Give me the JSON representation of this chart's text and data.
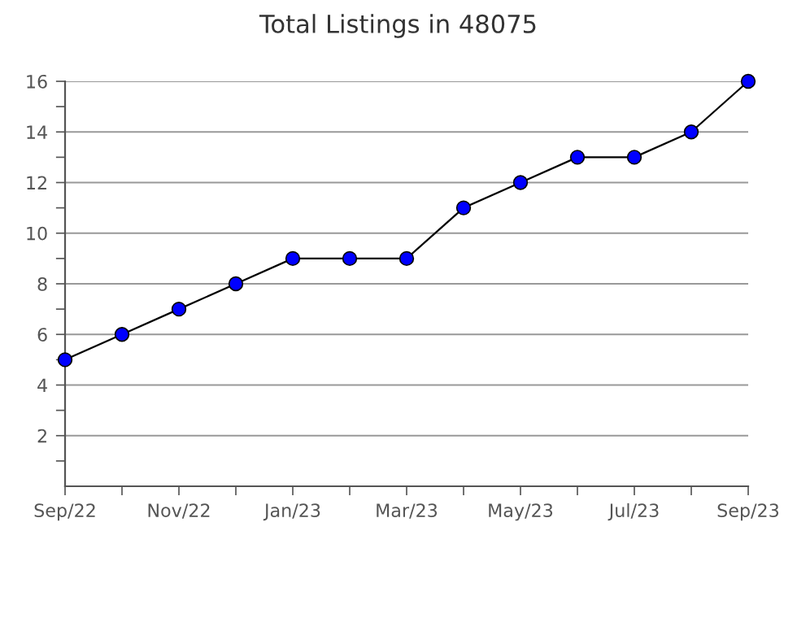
{
  "chart_data": {
    "type": "line",
    "title": "Total Listings in 48075",
    "categories": [
      "Sep/22",
      null,
      "Nov/22",
      null,
      "Jan/23",
      null,
      "Mar/23",
      null,
      "May/23",
      null,
      "Jul/23",
      null,
      "Sep/23"
    ],
    "series": [
      {
        "color": "#0000ff",
        "values": [
          5,
          6,
          7,
          8,
          9,
          9,
          9,
          11,
          12,
          13,
          13,
          14,
          16
        ]
      }
    ],
    "ylim": [
      0,
      16
    ],
    "yticks": [
      {
        "value": 1,
        "label": null
      },
      2,
      {
        "value": 3,
        "label": null
      },
      4,
      {
        "value": 5,
        "label": null
      },
      6,
      {
        "value": 7,
        "label": null
      },
      8,
      {
        "value": 9,
        "label": null
      },
      10,
      {
        "value": 11,
        "label": null
      },
      12,
      {
        "value": 13,
        "label": null
      },
      14,
      {
        "value": 15,
        "label": null
      },
      16
    ],
    "grid": "y",
    "marker": "circle",
    "line_style": "solid"
  }
}
